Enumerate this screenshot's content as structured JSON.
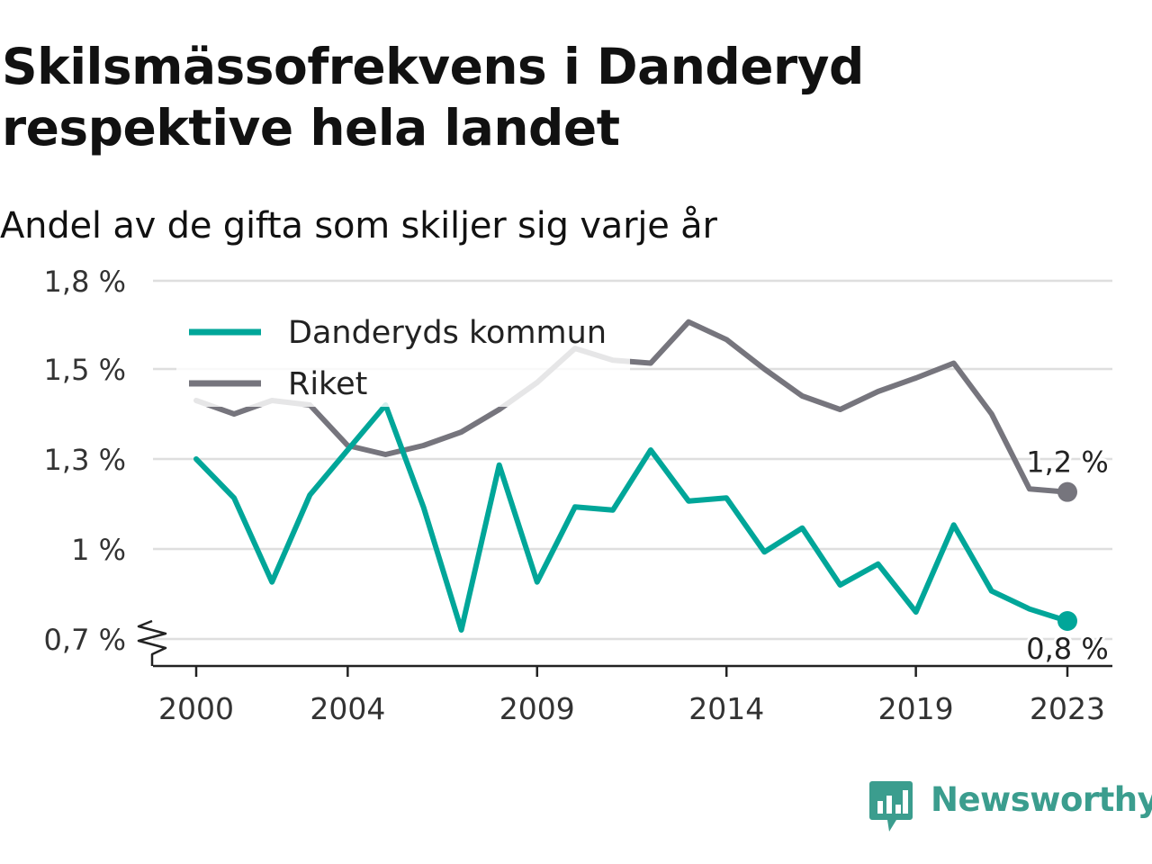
{
  "title": "Skilsmässofrekvens i Danderyd respektive hela landet",
  "subtitle": "Andel av de gifta som skiljer sig varje år",
  "brand": "Newsworthy",
  "colors": {
    "danderyd": "#00a699",
    "riket": "#76757d",
    "grid": "#dedede",
    "axis": "#222222",
    "brand": "#3b9d8e"
  },
  "chart_data": {
    "type": "line",
    "title": "Skilsmässofrekvens i Danderyd respektive hela landet",
    "subtitle": "Andel av de gifta som skiljer sig varje år",
    "x": [
      2000,
      2001,
      2002,
      2003,
      2004,
      2005,
      2006,
      2007,
      2008,
      2009,
      2010,
      2011,
      2012,
      2013,
      2014,
      2015,
      2016,
      2017,
      2018,
      2019,
      2020,
      2021,
      2022,
      2023
    ],
    "x_tick_labels": [
      "2000",
      "2004",
      "2009",
      "2014",
      "2019",
      "2023"
    ],
    "y_ticks": [
      0.7,
      1.0,
      1.3,
      1.5,
      1.8
    ],
    "y_tick_labels": [
      "0,7 %",
      "1 %",
      "1,3 %",
      "1,5 %",
      "1,8 %"
    ],
    "axis_break": true,
    "grid": true,
    "legend_position": "top-left",
    "series": [
      {
        "name": "Danderyds kommun",
        "color": "#00a699",
        "values": [
          1.3,
          1.17,
          0.89,
          1.18,
          1.32,
          1.42,
          1.14,
          0.73,
          1.28,
          0.89,
          1.14,
          1.13,
          1.32,
          1.16,
          1.17,
          0.99,
          1.07,
          0.88,
          0.95,
          0.79,
          1.08,
          0.86,
          0.8,
          0.76
        ],
        "end_label": "0,8 %"
      },
      {
        "name": "Riket",
        "color": "#76757d",
        "values": [
          1.43,
          1.4,
          1.43,
          1.42,
          1.33,
          1.31,
          1.33,
          1.36,
          1.41,
          1.47,
          1.57,
          1.53,
          1.52,
          1.66,
          1.6,
          1.5,
          1.44,
          1.41,
          1.45,
          1.48,
          1.52,
          1.4,
          1.2,
          1.19
        ],
        "end_label": "1,2 %"
      }
    ]
  }
}
